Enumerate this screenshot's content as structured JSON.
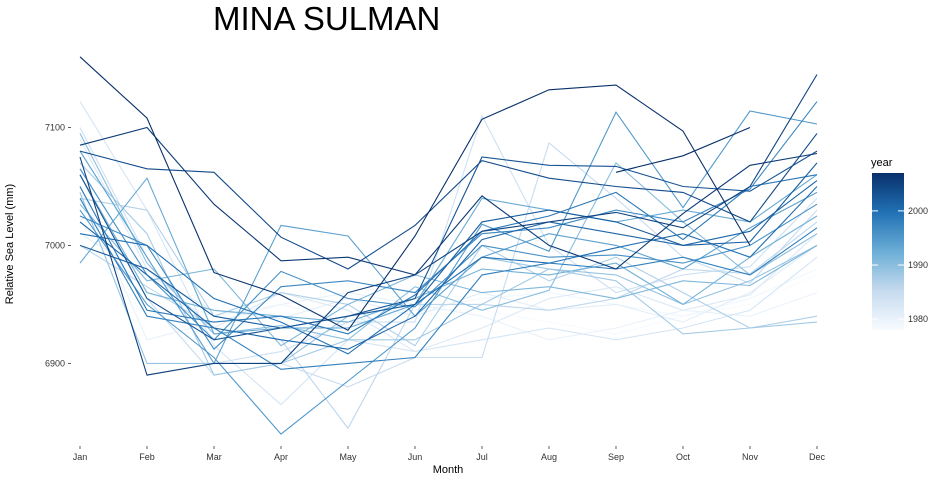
{
  "chart_data": {
    "type": "line",
    "title": "MINA SULMAN",
    "xlabel": "Month",
    "ylabel": "Relative Sea Level (mm)",
    "categories": [
      "Jan",
      "Feb",
      "Mar",
      "Apr",
      "May",
      "Jun",
      "Jul",
      "Aug",
      "Sep",
      "Oct",
      "Nov",
      "Dec"
    ],
    "ylim": [
      6835,
      7170
    ],
    "yticks": [
      6900,
      7000,
      7100
    ],
    "grid": false,
    "legend": {
      "title": "year",
      "position": "right",
      "type": "colorbar",
      "range": [
        1978,
        2007
      ],
      "ticks": [
        1980,
        1990,
        2000
      ],
      "color_low": "#f7fbff",
      "color_high": "#08306b"
    },
    "series": [
      {
        "year": 1978,
        "values": [
          7005,
          6940,
          6955,
          6940,
          6930,
          6945,
          6945,
          6935,
          6925,
          6940,
          6950,
          6975
        ]
      },
      {
        "year": 1979,
        "values": [
          7020,
          6960,
          6940,
          6950,
          6935,
          6945,
          6955,
          6960,
          6950,
          6940,
          6955,
          6980
        ]
      },
      {
        "year": 1980,
        "values": [
          7050,
          6920,
          6935,
          6950,
          6960,
          6950,
          6940,
          6920,
          6930,
          6945,
          6940,
          6960
        ]
      },
      {
        "year": 1981,
        "values": [
          7010,
          6975,
          6945,
          6938,
          6955,
          6940,
          6960,
          6945,
          6950,
          6935,
          6960,
          7000
        ]
      },
      {
        "year": 1982,
        "values": [
          7090,
          6980,
          6930,
          6960,
          6945,
          6910,
          6930,
          6955,
          6965,
          6945,
          6958,
          7010
        ]
      },
      {
        "year": 1983,
        "values": [
          7122,
          7030,
          6915,
          6865,
          6920,
          6910,
          6920,
          6930,
          6920,
          6930,
          6945,
          6990
        ]
      },
      {
        "year": 1984,
        "values": [
          7100,
          6990,
          6900,
          6910,
          6935,
          6935,
          7110,
          7000,
          6960,
          6975,
          6982,
          7040
        ]
      },
      {
        "year": 1985,
        "values": [
          7060,
          6955,
          6890,
          6900,
          6880,
          6905,
          6905,
          7087,
          7040,
          6990,
          6968,
          7030
        ]
      },
      {
        "year": 1986,
        "values": [
          7000,
          6965,
          6930,
          6920,
          6845,
          6950,
          6950,
          6945,
          6955,
          6980,
          6976,
          7020
        ]
      },
      {
        "year": 1987,
        "values": [
          7040,
          7030,
          6940,
          6960,
          6950,
          6915,
          7000,
          6970,
          6990,
          6960,
          6930,
          6940
        ]
      },
      {
        "year": 1988,
        "values": [
          7070,
          7010,
          6890,
          6900,
          6920,
          6920,
          6950,
          6980,
          6970,
          6925,
          6930,
          6935
        ]
      },
      {
        "year": 1989,
        "values": [
          7045,
          6900,
          6900,
          6900,
          6940,
          6950,
          6990,
          6980,
          6975,
          6950,
          6970,
          7000
        ]
      },
      {
        "year": 1990,
        "values": [
          7095,
          6985,
          6925,
          6932,
          6920,
          6965,
          6945,
          6962,
          7070,
          7020,
          6975,
          7010
        ]
      },
      {
        "year": 1991,
        "values": [
          7035,
          6970,
          6980,
          6915,
          6950,
          6975,
          6960,
          6965,
          6955,
          6970,
          6966,
          7000
        ]
      },
      {
        "year": 1992,
        "values": [
          7060,
          6960,
          6945,
          6940,
          6935,
          6955,
          6980,
          6975,
          6985,
          6950,
          6990,
          7025
        ]
      },
      {
        "year": 1993,
        "values": [
          6985,
          7057,
          6925,
          6930,
          6930,
          6950,
          7040,
          7030,
          7020,
          7030,
          7020,
          7060
        ]
      },
      {
        "year": 1994,
        "values": [
          7080,
          6990,
          6900,
          7017,
          7008,
          6940,
          6990,
          7010,
          7000,
          6980,
          7015,
          7045
        ]
      },
      {
        "year": 1995,
        "values": [
          7030,
          6950,
          6905,
          6840,
          6885,
          6930,
          7018,
          6995,
          7113,
          7032,
          7114,
          7103
        ]
      },
      {
        "year": 1996,
        "values": [
          7065,
          6975,
          6920,
          6978,
          6955,
          6948,
          7000,
          6990,
          6992,
          6985,
          7000,
          7035
        ]
      },
      {
        "year": 1997,
        "values": [
          7025,
          7000,
          6912,
          6965,
          6970,
          6960,
          7010,
          7015,
          7030,
          7020,
          7048,
          7122
        ]
      },
      {
        "year": 1998,
        "values": [
          7040,
          6940,
          6930,
          6895,
          6900,
          6905,
          6975,
          6985,
          6980,
          6990,
          6975,
          7015
        ]
      },
      {
        "year": 1999,
        "values": [
          7050,
          6945,
          6935,
          6940,
          6925,
          6958,
          7012,
          7025,
          7045,
          7005,
          7050,
          7060
        ]
      },
      {
        "year": 2000,
        "values": [
          7010,
          7000,
          6955,
          6935,
          6908,
          6950,
          6990,
          6985,
          6998,
          7010,
          6990,
          7050
        ]
      },
      {
        "year": 2001,
        "values": [
          7020,
          6975,
          6930,
          6920,
          6912,
          6940,
          7005,
          7020,
          7010,
          7000,
          7012,
          7055
        ]
      },
      {
        "year": 2002,
        "values": [
          7000,
          6980,
          6940,
          6930,
          6940,
          6950,
          7020,
          7030,
          7020,
          7000,
          7003,
          7070
        ]
      },
      {
        "year": 2003,
        "values": [
          7060,
          6955,
          6920,
          6930,
          6940,
          6955,
          7075,
          7068,
          7067,
          7050,
          7046,
          7080
        ]
      },
      {
        "year": 2004,
        "values": [
          7080,
          7065,
          7062,
          7007,
          6980,
          7017,
          7072,
          7057,
          7050,
          7045,
          7020,
          7095
        ]
      },
      {
        "year": 2005,
        "values": [
          7075,
          6890,
          6900,
          6900,
          6960,
          6975,
          7012,
          7020,
          7028,
          7015,
          7050,
          7145
        ]
      },
      {
        "year": 2006,
        "values": [
          7085,
          7100,
          7035,
          6987,
          6990,
          6975,
          7042,
          7000,
          6980,
          7027,
          7068,
          7078
        ]
      },
      {
        "year": 2007,
        "values": [
          7160,
          7108,
          6977,
          6958,
          6928,
          7008,
          7107,
          7132,
          7136,
          7097,
          7000,
          null
        ]
      },
      {
        "year": 2007.5,
        "values": [
          null,
          null,
          null,
          null,
          null,
          null,
          null,
          null,
          7062,
          7076,
          7100,
          null
        ]
      }
    ]
  }
}
